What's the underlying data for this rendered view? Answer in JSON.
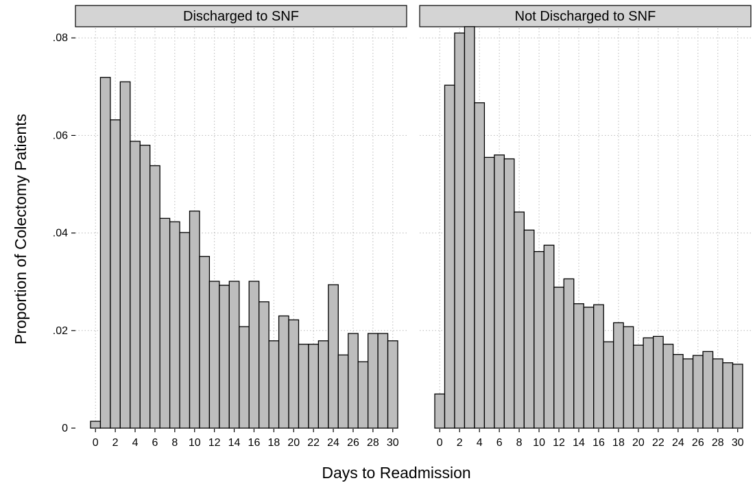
{
  "chart_data": {
    "type": "bar",
    "xlabel": "Days to Readmission",
    "ylabel": "Proportion of Colectomy Patients",
    "ylim": [
      0,
      0.082
    ],
    "y_ticks": [
      0,
      0.02,
      0.04,
      0.06,
      0.08
    ],
    "y_tick_labels": [
      "0",
      ".02",
      ".04",
      ".06",
      ".08"
    ],
    "x_ticks": [
      0,
      2,
      4,
      6,
      8,
      10,
      12,
      14,
      16,
      18,
      20,
      22,
      24,
      26,
      28,
      30
    ],
    "x_tick_labels": [
      "0",
      "2",
      "4",
      "6",
      "8",
      "10",
      "12",
      "14",
      "16",
      "18",
      "20",
      "22",
      "24",
      "26",
      "28",
      "30"
    ],
    "x": [
      0,
      1,
      2,
      3,
      4,
      5,
      6,
      7,
      8,
      9,
      10,
      11,
      12,
      13,
      14,
      15,
      16,
      17,
      18,
      19,
      20,
      21,
      22,
      23,
      24,
      25,
      26,
      27,
      28,
      29,
      30
    ],
    "grid": true,
    "panels": [
      {
        "title": "Discharged to SNF",
        "values": [
          0.0014,
          0.0719,
          0.0632,
          0.071,
          0.0588,
          0.058,
          0.0538,
          0.043,
          0.0423,
          0.0401,
          0.0445,
          0.0352,
          0.0301,
          0.0293,
          0.0301,
          0.0208,
          0.0301,
          0.0259,
          0.0179,
          0.023,
          0.0222,
          0.0172,
          0.0172,
          0.0179,
          0.0294,
          0.015,
          0.0194,
          0.0136,
          0.0194,
          0.0194,
          0.0179
        ]
      },
      {
        "title": "Not Discharged to SNF",
        "values": [
          0.007,
          0.0703,
          0.081,
          0.0823,
          0.0667,
          0.0555,
          0.056,
          0.0552,
          0.0443,
          0.0406,
          0.0362,
          0.0375,
          0.0289,
          0.0306,
          0.0255,
          0.0248,
          0.0253,
          0.0177,
          0.0216,
          0.0208,
          0.017,
          0.0185,
          0.0188,
          0.0172,
          0.0151,
          0.0142,
          0.0149,
          0.0157,
          0.0142,
          0.0134,
          0.0131
        ]
      }
    ]
  }
}
